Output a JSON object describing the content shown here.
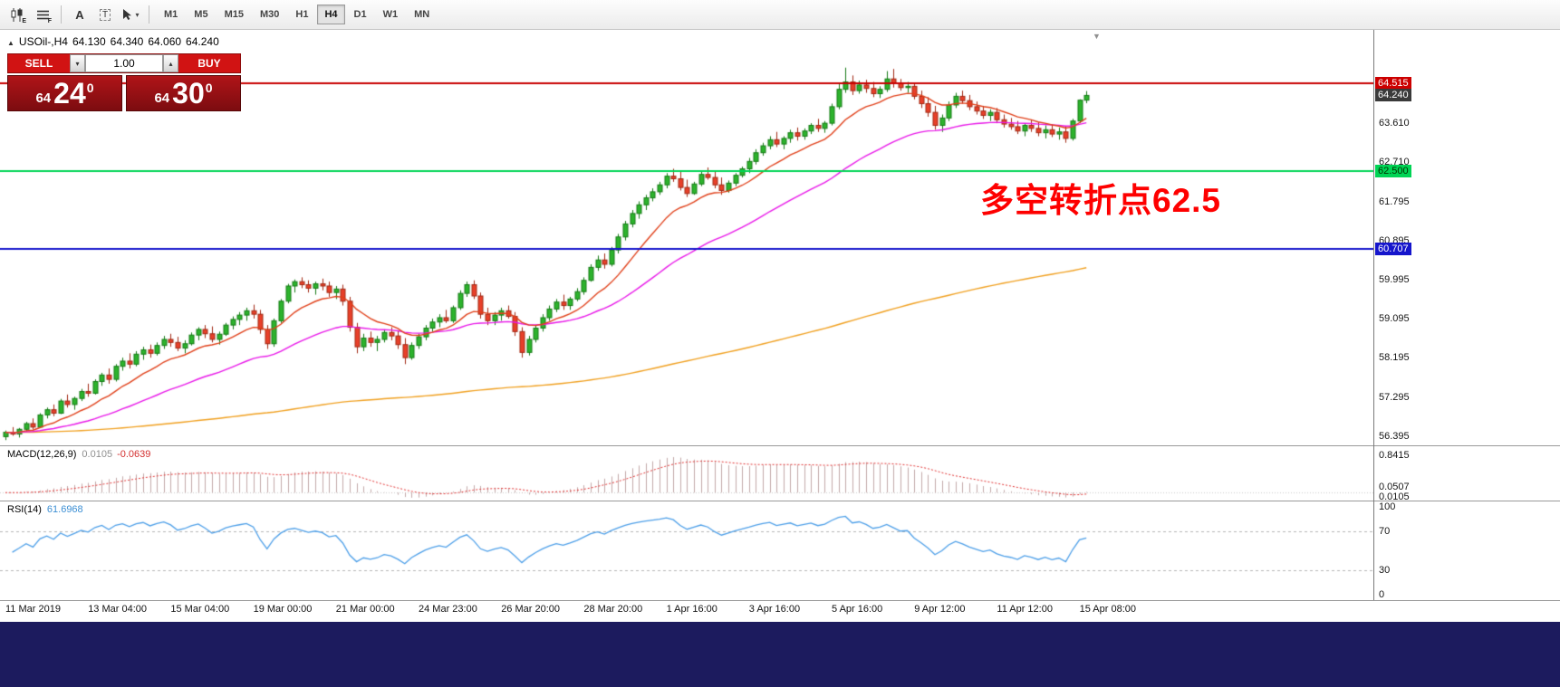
{
  "toolbar": {
    "tool_letters": {
      "e": "E",
      "f": "F",
      "a": "A",
      "t": "T"
    },
    "cursor_caret": "▾",
    "timeframes": [
      {
        "label": "M1",
        "selected": false
      },
      {
        "label": "M5",
        "selected": false
      },
      {
        "label": "M15",
        "selected": false
      },
      {
        "label": "M30",
        "selected": false
      },
      {
        "label": "H1",
        "selected": false
      },
      {
        "label": "H4",
        "selected": true
      },
      {
        "label": "D1",
        "selected": false
      },
      {
        "label": "W1",
        "selected": false
      },
      {
        "label": "MN",
        "selected": false
      }
    ]
  },
  "quote_header": {
    "marker": "▲",
    "symbol": "USOil-,H4",
    "open": "64.130",
    "high": "64.340",
    "low": "64.060",
    "close": "64.240"
  },
  "trade_panel": {
    "sell_label": "SELL",
    "buy_label": "BUY",
    "volume": "1.00",
    "volume_down": "▾",
    "volume_up": "▴",
    "sell_price": {
      "prefix": "64",
      "big": "24",
      "sup": "0"
    },
    "buy_price": {
      "prefix": "64",
      "big": "30",
      "sup": "0"
    }
  },
  "annotation": {
    "text": "多空转折点62.5",
    "color": "#fe0000"
  },
  "price_scale": {
    "labels": [
      {
        "text": "63.610"
      },
      {
        "text": "62.710"
      },
      {
        "text": "61.795"
      },
      {
        "text": "60.895"
      },
      {
        "text": "59.995"
      },
      {
        "text": "59.095"
      },
      {
        "text": "58.195"
      },
      {
        "text": "57.295"
      },
      {
        "text": "56.395"
      }
    ],
    "tags": [
      {
        "text": "64.515",
        "bg": "#cc0000",
        "fg": "#ffffff"
      },
      {
        "text": "64.240",
        "bg": "#3a3a3a",
        "fg": "#ffffff"
      },
      {
        "text": "62.500",
        "bg": "#00d455",
        "fg": "#003300"
      },
      {
        "text": "60.707",
        "bg": "#1515cc",
        "fg": "#ffffff"
      }
    ]
  },
  "macd_panel": {
    "title": "MACD(12,26,9)",
    "value_main": "0.0105",
    "value_signal": "-0.0639",
    "scale_top": "0.8415",
    "scale_mid": "0.0507",
    "scale_bottom": "0.0105"
  },
  "rsi_panel": {
    "title": "RSI(14)",
    "value": "61.6968",
    "scale": [
      "100",
      "70",
      "30",
      "0"
    ],
    "levels": [
      70,
      30
    ]
  },
  "colors": {
    "up": "#2db32d",
    "up_border": "#157a15",
    "down": "#e8402a",
    "down_border": "#a02813",
    "ma_fast": "#e0401a",
    "ma_medium": "#e818e8",
    "ma_slow": "#f0a020",
    "macd_hist": "#c2a8a8",
    "macd_signal": "#e03030",
    "rsi_line": "#4d9fe8",
    "level_line": "#b4b4b4"
  },
  "chart_data": [
    {
      "type": "candlestick",
      "title": "USOil-,H4",
      "last_quote": {
        "open": 64.13,
        "high": 64.34,
        "low": 64.06,
        "close": 64.24
      },
      "y_range": [
        56.18,
        65.75
      ],
      "hlines": [
        {
          "value": 64.515,
          "color": "#c80000"
        },
        {
          "value": 62.5,
          "color": "#00d455"
        },
        {
          "value": 60.707,
          "color": "#1414cc"
        }
      ],
      "moving_averages": [
        {
          "name": "slow-ma",
          "color": "#f0a020",
          "alpha": 0.0085
        },
        {
          "name": "medium-ma",
          "color": "#e818e8",
          "alpha": 0.055
        },
        {
          "name": "fast-ma",
          "color": "#e0401a",
          "alpha": 0.16
        }
      ],
      "x_labels": [
        "11 Mar 2019",
        "13 Mar 04:00",
        "15 Mar 04:00",
        "19 Mar 00:00",
        "21 Mar 00:00",
        "24 Mar 23:00",
        "26 Mar 20:00",
        "28 Mar 20:00",
        "1 Apr 16:00",
        "3 Apr 16:00",
        "5 Apr 16:00",
        "9 Apr 12:00",
        "11 Apr 12:00",
        "15 Apr 08:00"
      ],
      "x_label_indices": [
        0,
        12,
        24,
        36,
        48,
        60,
        72,
        84,
        96,
        108,
        120,
        132,
        144,
        156
      ],
      "candles": [
        [
          56.38,
          56.52,
          56.3,
          56.48
        ],
        [
          56.48,
          56.6,
          56.4,
          56.44
        ],
        [
          56.44,
          56.58,
          56.36,
          56.55
        ],
        [
          56.55,
          56.72,
          56.5,
          56.68
        ],
        [
          56.68,
          56.8,
          56.55,
          56.6
        ],
        [
          56.6,
          56.92,
          56.58,
          56.88
        ],
        [
          56.88,
          57.05,
          56.8,
          57.0
        ],
        [
          57.0,
          57.12,
          56.85,
          56.92
        ],
        [
          56.92,
          57.25,
          56.9,
          57.2
        ],
        [
          57.2,
          57.35,
          57.05,
          57.12
        ],
        [
          57.12,
          57.3,
          57.0,
          57.26
        ],
        [
          57.26,
          57.48,
          57.2,
          57.42
        ],
        [
          57.42,
          57.6,
          57.3,
          57.38
        ],
        [
          57.38,
          57.7,
          57.35,
          57.65
        ],
        [
          57.65,
          57.85,
          57.55,
          57.8
        ],
        [
          57.8,
          57.95,
          57.6,
          57.7
        ],
        [
          57.7,
          58.05,
          57.65,
          58.0
        ],
        [
          58.0,
          58.2,
          57.9,
          58.12
        ],
        [
          58.12,
          58.3,
          57.95,
          58.05
        ],
        [
          58.05,
          58.35,
          58.0,
          58.28
        ],
        [
          58.28,
          58.45,
          58.15,
          58.38
        ],
        [
          58.38,
          58.5,
          58.2,
          58.3
        ],
        [
          58.3,
          58.55,
          58.25,
          58.48
        ],
        [
          58.48,
          58.7,
          58.4,
          58.62
        ],
        [
          58.62,
          58.75,
          58.45,
          58.55
        ],
        [
          58.55,
          58.68,
          58.35,
          58.42
        ],
        [
          58.42,
          58.6,
          58.3,
          58.52
        ],
        [
          58.52,
          58.78,
          58.48,
          58.72
        ],
        [
          58.72,
          58.9,
          58.6,
          58.85
        ],
        [
          58.85,
          58.95,
          58.65,
          58.75
        ],
        [
          58.75,
          58.92,
          58.55,
          58.62
        ],
        [
          58.62,
          58.8,
          58.5,
          58.74
        ],
        [
          58.74,
          59.0,
          58.7,
          58.95
        ],
        [
          58.95,
          59.15,
          58.85,
          59.08
        ],
        [
          59.08,
          59.25,
          58.95,
          59.18
        ],
        [
          59.18,
          59.35,
          59.05,
          59.28
        ],
        [
          59.28,
          59.42,
          59.1,
          59.2
        ],
        [
          59.2,
          59.3,
          58.75,
          58.85
        ],
        [
          58.85,
          58.95,
          58.4,
          58.52
        ],
        [
          58.52,
          59.1,
          58.45,
          59.05
        ],
        [
          59.05,
          59.55,
          59.0,
          59.5
        ],
        [
          59.5,
          59.9,
          59.45,
          59.85
        ],
        [
          59.85,
          60.0,
          59.7,
          59.95
        ],
        [
          59.95,
          60.05,
          59.8,
          59.88
        ],
        [
          59.88,
          59.98,
          59.7,
          59.8
        ],
        [
          59.8,
          59.95,
          59.65,
          59.9
        ],
        [
          59.9,
          60.02,
          59.75,
          59.85
        ],
        [
          59.85,
          59.95,
          59.6,
          59.7
        ],
        [
          59.7,
          59.85,
          59.55,
          59.78
        ],
        [
          59.78,
          59.88,
          59.4,
          59.5
        ],
        [
          59.5,
          59.6,
          58.8,
          58.9
        ],
        [
          58.9,
          59.0,
          58.3,
          58.45
        ],
        [
          58.45,
          58.75,
          58.35,
          58.65
        ],
        [
          58.65,
          58.8,
          58.45,
          58.55
        ],
        [
          58.55,
          58.7,
          58.35,
          58.62
        ],
        [
          58.62,
          58.85,
          58.55,
          58.78
        ],
        [
          58.78,
          58.9,
          58.6,
          58.7
        ],
        [
          58.7,
          58.82,
          58.4,
          58.5
        ],
        [
          58.5,
          58.65,
          58.05,
          58.2
        ],
        [
          58.2,
          58.55,
          58.15,
          58.48
        ],
        [
          58.48,
          58.75,
          58.4,
          58.68
        ],
        [
          58.68,
          58.95,
          58.6,
          58.88
        ],
        [
          58.88,
          59.1,
          58.8,
          59.02
        ],
        [
          59.02,
          59.2,
          58.9,
          59.12
        ],
        [
          59.12,
          59.3,
          59.0,
          59.05
        ],
        [
          59.05,
          59.4,
          59.0,
          59.35
        ],
        [
          59.35,
          59.75,
          59.3,
          59.68
        ],
        [
          59.68,
          59.95,
          59.6,
          59.88
        ],
        [
          59.88,
          59.98,
          59.55,
          59.62
        ],
        [
          59.62,
          59.7,
          59.1,
          59.2
        ],
        [
          59.2,
          59.35,
          58.95,
          59.05
        ],
        [
          59.05,
          59.25,
          58.95,
          59.18
        ],
        [
          59.18,
          59.35,
          59.05,
          59.28
        ],
        [
          59.28,
          59.4,
          59.1,
          59.15
        ],
        [
          59.15,
          59.25,
          58.7,
          58.8
        ],
        [
          58.8,
          58.9,
          58.2,
          58.32
        ],
        [
          58.32,
          58.7,
          58.25,
          58.62
        ],
        [
          58.62,
          58.95,
          58.55,
          58.88
        ],
        [
          58.88,
          59.2,
          58.8,
          59.12
        ],
        [
          59.12,
          59.4,
          59.05,
          59.32
        ],
        [
          59.32,
          59.55,
          59.25,
          59.48
        ],
        [
          59.48,
          59.65,
          59.3,
          59.4
        ],
        [
          59.4,
          59.6,
          59.3,
          59.55
        ],
        [
          59.55,
          59.8,
          59.5,
          59.72
        ],
        [
          59.72,
          60.05,
          59.65,
          59.98
        ],
        [
          59.98,
          60.35,
          59.95,
          60.28
        ],
        [
          60.28,
          60.55,
          60.2,
          60.45
        ],
        [
          60.45,
          60.6,
          60.25,
          60.35
        ],
        [
          60.35,
          60.75,
          60.3,
          60.68
        ],
        [
          60.68,
          61.05,
          60.6,
          60.98
        ],
        [
          60.98,
          61.35,
          60.9,
          61.28
        ],
        [
          61.28,
          61.6,
          61.2,
          61.52
        ],
        [
          61.52,
          61.8,
          61.4,
          61.72
        ],
        [
          61.72,
          61.95,
          61.6,
          61.88
        ],
        [
          61.88,
          62.1,
          61.8,
          62.02
        ],
        [
          62.02,
          62.25,
          61.95,
          62.18
        ],
        [
          62.18,
          62.45,
          62.1,
          62.38
        ],
        [
          62.38,
          62.55,
          62.25,
          62.32
        ],
        [
          62.32,
          62.48,
          62.05,
          62.12
        ],
        [
          62.12,
          62.3,
          61.9,
          61.98
        ],
        [
          61.98,
          62.25,
          61.95,
          62.2
        ],
        [
          62.2,
          62.5,
          62.15,
          62.42
        ],
        [
          62.42,
          62.58,
          62.3,
          62.35
        ],
        [
          62.35,
          62.5,
          62.1,
          62.18
        ],
        [
          62.18,
          62.35,
          61.95,
          62.05
        ],
        [
          62.05,
          62.28,
          62.0,
          62.22
        ],
        [
          62.22,
          62.45,
          62.15,
          62.4
        ],
        [
          62.4,
          62.6,
          62.35,
          62.55
        ],
        [
          62.55,
          62.8,
          62.45,
          62.72
        ],
        [
          62.72,
          63.0,
          62.65,
          62.92
        ],
        [
          62.92,
          63.15,
          62.85,
          63.08
        ],
        [
          63.08,
          63.3,
          63.0,
          63.22
        ],
        [
          63.22,
          63.4,
          63.05,
          63.12
        ],
        [
          63.12,
          63.3,
          63.0,
          63.25
        ],
        [
          63.25,
          63.45,
          63.15,
          63.38
        ],
        [
          63.38,
          63.5,
          63.2,
          63.3
        ],
        [
          63.3,
          63.48,
          63.22,
          63.42
        ],
        [
          63.42,
          63.6,
          63.35,
          63.55
        ],
        [
          63.55,
          63.7,
          63.4,
          63.48
        ],
        [
          63.48,
          63.65,
          63.38,
          63.6
        ],
        [
          63.6,
          64.05,
          63.55,
          63.98
        ],
        [
          63.98,
          64.5,
          63.92,
          64.38
        ],
        [
          64.38,
          64.88,
          64.3,
          64.55
        ],
        [
          64.55,
          64.7,
          64.25,
          64.35
        ],
        [
          64.35,
          64.58,
          64.28,
          64.48
        ],
        [
          64.48,
          64.6,
          64.3,
          64.4
        ],
        [
          64.4,
          64.55,
          64.2,
          64.28
        ],
        [
          64.28,
          64.45,
          64.18,
          64.38
        ],
        [
          64.38,
          64.8,
          64.32,
          64.62
        ],
        [
          64.62,
          64.85,
          64.42,
          64.52
        ],
        [
          64.52,
          64.62,
          64.35,
          64.42
        ],
        [
          64.42,
          64.55,
          64.3,
          64.45
        ],
        [
          64.45,
          64.52,
          64.15,
          64.22
        ],
        [
          64.22,
          64.35,
          63.95,
          64.05
        ],
        [
          64.05,
          64.2,
          63.75,
          63.85
        ],
        [
          63.85,
          64.0,
          63.45,
          63.55
        ],
        [
          63.55,
          63.8,
          63.4,
          63.72
        ],
        [
          63.72,
          64.1,
          63.65,
          64.02
        ],
        [
          64.02,
          64.3,
          63.95,
          64.22
        ],
        [
          64.22,
          64.35,
          64.05,
          64.12
        ],
        [
          64.12,
          64.25,
          63.9,
          63.98
        ],
        [
          63.98,
          64.1,
          63.8,
          63.88
        ],
        [
          63.88,
          64.0,
          63.7,
          63.78
        ],
        [
          63.78,
          63.92,
          63.65,
          63.85
        ],
        [
          63.85,
          63.95,
          63.6,
          63.68
        ],
        [
          63.68,
          63.8,
          63.5,
          63.58
        ],
        [
          63.58,
          63.72,
          63.45,
          63.52
        ],
        [
          63.52,
          63.65,
          63.35,
          63.42
        ],
        [
          63.42,
          63.6,
          63.3,
          63.55
        ],
        [
          63.55,
          63.68,
          63.4,
          63.48
        ],
        [
          63.48,
          63.62,
          63.3,
          63.38
        ],
        [
          63.38,
          63.55,
          63.25,
          63.45
        ],
        [
          63.45,
          63.58,
          63.28,
          63.35
        ],
        [
          63.35,
          63.5,
          63.22,
          63.4
        ],
        [
          63.4,
          63.52,
          63.15,
          63.25
        ],
        [
          63.25,
          63.7,
          63.2,
          63.65
        ],
        [
          63.65,
          64.15,
          63.6,
          64.13
        ],
        [
          64.13,
          64.34,
          64.06,
          64.24
        ]
      ]
    },
    {
      "type": "macd",
      "params": [
        12,
        26,
        9
      ],
      "shown_values": {
        "macd": 0.0105,
        "signal": -0.0639
      },
      "scale_max_label": 0.8415,
      "y_range": [
        -0.18,
        1.05
      ]
    },
    {
      "type": "rsi",
      "period": 14,
      "shown_value": 61.6968,
      "levels": [
        70,
        30
      ],
      "y_range": [
        0,
        100
      ]
    }
  ]
}
